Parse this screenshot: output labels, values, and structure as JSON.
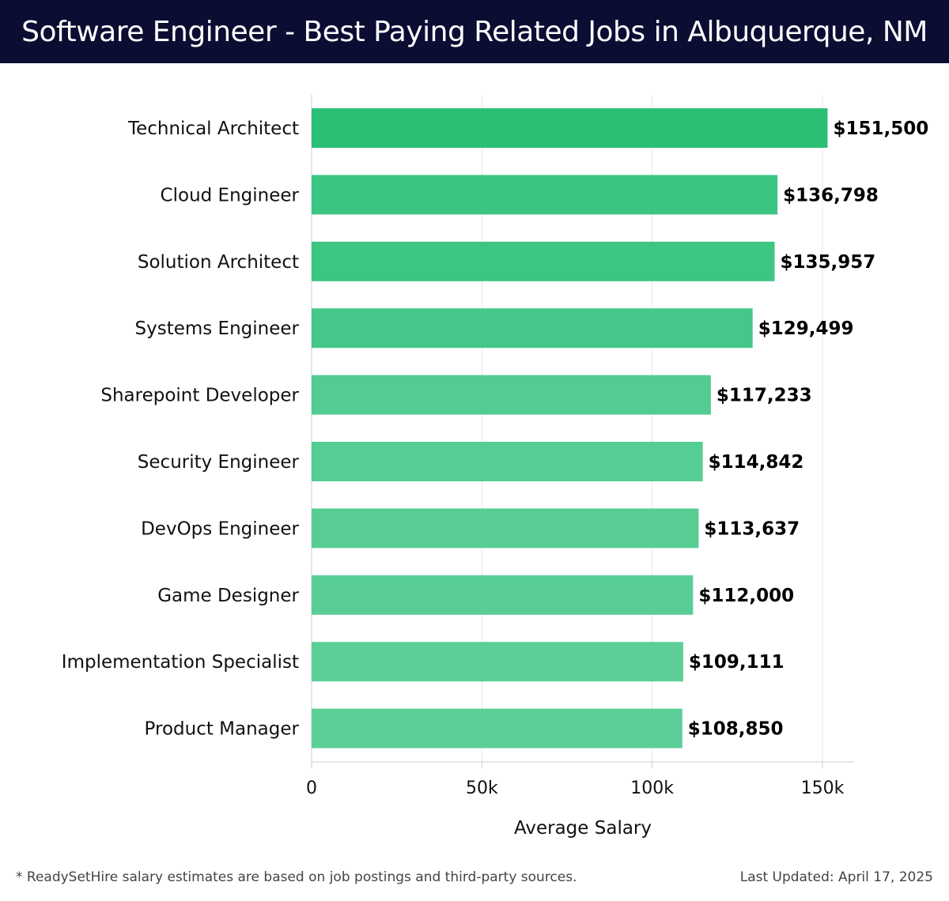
{
  "header": {
    "title": "Software Engineer - Best Paying Related Jobs in Albuquerque, NM"
  },
  "footer": {
    "note": "* ReadySetHire salary estimates are based on job postings and third-party sources.",
    "updated": "Last Updated: April 17, 2025"
  },
  "chart_data": {
    "type": "bar",
    "orientation": "horizontal",
    "title": "Software Engineer - Best Paying Related Jobs in Albuquerque, NM",
    "xlabel": "Average Salary",
    "ylabel": "",
    "xlim": [
      0,
      160000
    ],
    "xticks": [
      {
        "value": 0,
        "label": "0"
      },
      {
        "value": 50000,
        "label": "50k"
      },
      {
        "value": 100000,
        "label": "100k"
      },
      {
        "value": 150000,
        "label": "150k"
      }
    ],
    "grid": true,
    "categories": [
      "Technical Architect",
      "Cloud Engineer",
      "Solution Architect",
      "Systems Engineer",
      "Sharepoint Developer",
      "Security Engineer",
      "DevOps Engineer",
      "Game Designer",
      "Implementation Specialist",
      "Product Manager"
    ],
    "values": [
      151500,
      136798,
      135957,
      129499,
      117233,
      114842,
      113637,
      112000,
      109111,
      108850
    ],
    "value_labels": [
      "$151,500",
      "$136,798",
      "$135,957",
      "$129,499",
      "$117,233",
      "$114,842",
      "$113,637",
      "$112,000",
      "$109,111",
      "$108,850"
    ],
    "colors": {
      "bar_high": "#2bbf76",
      "bar_low": "#5ccf98",
      "grid": "#e6e6e6",
      "axis": "#cccccc",
      "label": "#000000"
    }
  }
}
